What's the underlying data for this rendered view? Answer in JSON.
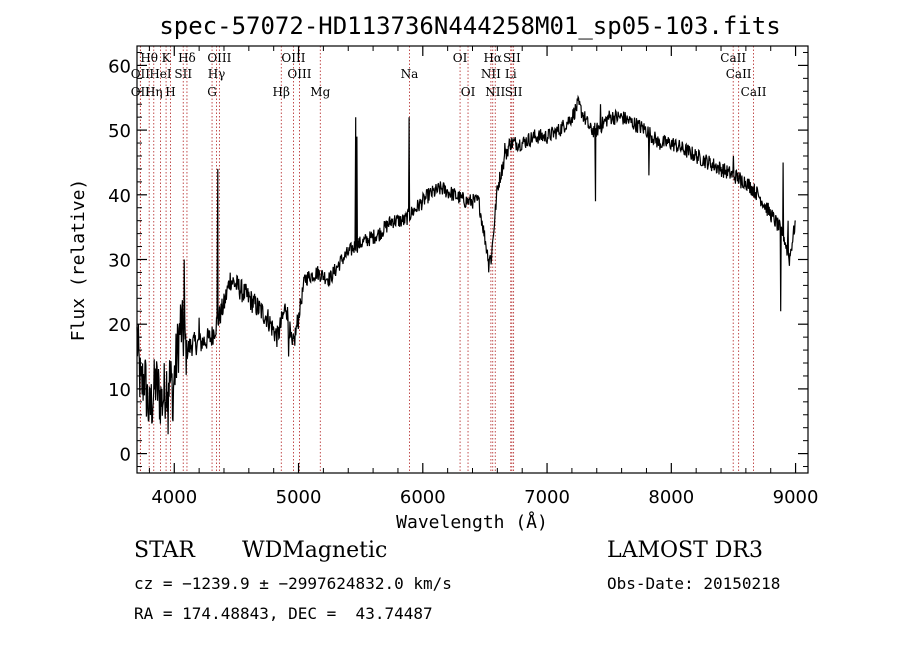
{
  "chart_data": {
    "type": "line",
    "title": "spec-57072-HD113736N444258M01_sp05-103.fits",
    "xlabel": "Wavelength (Å)",
    "ylabel": "Flux (relative)",
    "xlim": [
      3700,
      9100
    ],
    "ylim": [
      -3,
      63
    ],
    "xticks": [
      4000,
      5000,
      6000,
      7000,
      8000,
      9000
    ],
    "yticks": [
      0,
      10,
      20,
      30,
      40,
      50,
      60
    ],
    "spectrum_anchors": [
      [
        3700,
        18
      ],
      [
        3730,
        10
      ],
      [
        3760,
        12
      ],
      [
        3800,
        6
      ],
      [
        3850,
        11
      ],
      [
        3900,
        8
      ],
      [
        3950,
        12
      ],
      [
        3990,
        10
      ],
      [
        4050,
        20
      ],
      [
        4100,
        16
      ],
      [
        4150,
        17
      ],
      [
        4200,
        17
      ],
      [
        4300,
        18
      ],
      [
        4340,
        20
      ],
      [
        4400,
        23
      ],
      [
        4450,
        27
      ],
      [
        4500,
        26
      ],
      [
        4550,
        25
      ],
      [
        4600,
        24
      ],
      [
        4650,
        23
      ],
      [
        4700,
        22
      ],
      [
        4750,
        21
      ],
      [
        4800,
        19
      ],
      [
        4830,
        18
      ],
      [
        4860,
        20
      ],
      [
        4900,
        23
      ],
      [
        4950,
        16
      ],
      [
        4990,
        20
      ],
      [
        5050,
        27
      ],
      [
        5150,
        28
      ],
      [
        5250,
        27
      ],
      [
        5350,
        30
      ],
      [
        5450,
        32
      ],
      [
        5550,
        33
      ],
      [
        5650,
        34
      ],
      [
        5750,
        36
      ],
      [
        5850,
        36
      ],
      [
        5950,
        38
      ],
      [
        6050,
        40
      ],
      [
        6150,
        41
      ],
      [
        6250,
        40
      ],
      [
        6350,
        39
      ],
      [
        6450,
        39
      ],
      [
        6520,
        31
      ],
      [
        6550,
        30
      ],
      [
        6600,
        41
      ],
      [
        6650,
        45
      ],
      [
        6700,
        48
      ],
      [
        6800,
        48
      ],
      [
        6900,
        49
      ],
      [
        7000,
        49
      ],
      [
        7100,
        50
      ],
      [
        7200,
        52
      ],
      [
        7250,
        54
      ],
      [
        7300,
        52
      ],
      [
        7350,
        50
      ],
      [
        7400,
        50
      ],
      [
        7450,
        51
      ],
      [
        7500,
        52
      ],
      [
        7600,
        52
      ],
      [
        7700,
        51
      ],
      [
        7800,
        50
      ],
      [
        7900,
        48
      ],
      [
        8000,
        48
      ],
      [
        8100,
        47
      ],
      [
        8200,
        46
      ],
      [
        8300,
        45
      ],
      [
        8400,
        44
      ],
      [
        8500,
        43
      ],
      [
        8600,
        42
      ],
      [
        8700,
        40
      ],
      [
        8800,
        37
      ],
      [
        8900,
        34
      ],
      [
        8950,
        30
      ],
      [
        9000,
        36
      ]
    ],
    "spectrum_spikes": [
      [
        3950,
        3
      ],
      [
        3990,
        5
      ],
      [
        4080,
        30
      ],
      [
        4200,
        21
      ],
      [
        4350,
        44
      ],
      [
        4920,
        15
      ],
      [
        5460,
        52
      ],
      [
        5470,
        49
      ],
      [
        5890,
        52
      ],
      [
        6530,
        28
      ],
      [
        6660,
        48
      ],
      [
        7390,
        39
      ],
      [
        7430,
        54
      ],
      [
        7820,
        43
      ],
      [
        8500,
        46
      ],
      [
        8560,
        41
      ],
      [
        8880,
        22
      ],
      [
        8900,
        45
      ],
      [
        8940,
        36
      ]
    ],
    "emission_lines": [
      {
        "name": "Hθ",
        "wavelength": 3798,
        "row": 1
      },
      {
        "name": "OII",
        "wavelength": 3727,
        "row": 2
      },
      {
        "name": "OII",
        "wavelength": 3727,
        "row": 3
      },
      {
        "name": "K",
        "wavelength": 3934,
        "row": 1
      },
      {
        "name": "HeI",
        "wavelength": 3889,
        "row": 2
      },
      {
        "name": "Hη",
        "wavelength": 3835,
        "row": 3
      },
      {
        "name": "Hδ",
        "wavelength": 4102,
        "row": 1
      },
      {
        "name": "SII",
        "wavelength": 4072,
        "row": 2
      },
      {
        "name": "H",
        "wavelength": 3969,
        "row": 3
      },
      {
        "name": "OIII",
        "wavelength": 4363,
        "row": 1
      },
      {
        "name": "Hγ",
        "wavelength": 4340,
        "row": 2
      },
      {
        "name": "G",
        "wavelength": 4304,
        "row": 3
      },
      {
        "name": "OIII",
        "wavelength": 4959,
        "row": 1
      },
      {
        "name": "OIII",
        "wavelength": 5007,
        "row": 2
      },
      {
        "name": "Hβ",
        "wavelength": 4861,
        "row": 3
      },
      {
        "name": "Mg",
        "wavelength": 5175,
        "row": 3
      },
      {
        "name": "Na",
        "wavelength": 5893,
        "row": 2
      },
      {
        "name": "OI",
        "wavelength": 6300,
        "row": 1
      },
      {
        "name": "OI",
        "wavelength": 6364,
        "row": 3
      },
      {
        "name": "Hα",
        "wavelength": 6563,
        "row": 1
      },
      {
        "name": "NII",
        "wavelength": 6548,
        "row": 2
      },
      {
        "name": "NII",
        "wavelength": 6583,
        "row": 3
      },
      {
        "name": "SII",
        "wavelength": 6717,
        "row": 1
      },
      {
        "name": "Li",
        "wavelength": 6708,
        "row": 2
      },
      {
        "name": "SII",
        "wavelength": 6731,
        "row": 3
      },
      {
        "name": "CaII",
        "wavelength": 8498,
        "row": 1
      },
      {
        "name": "CaII",
        "wavelength": 8542,
        "row": 2
      },
      {
        "name": "CaII",
        "wavelength": 8662,
        "row": 3
      }
    ]
  },
  "info": {
    "object_class": "STAR",
    "subclass": "WDMagnetic",
    "survey": "LAMOST DR3",
    "cz": "cz = −1239.9 ± −2997624832.0 km/s",
    "obs_date": "Obs-Date: 20150218",
    "coords": "RA = 174.48843, DEC =  43.74487"
  },
  "colors": {
    "spectrum": "#000000",
    "line_marker": "#b22222",
    "axes": "#000000",
    "background": "#ffffff"
  }
}
